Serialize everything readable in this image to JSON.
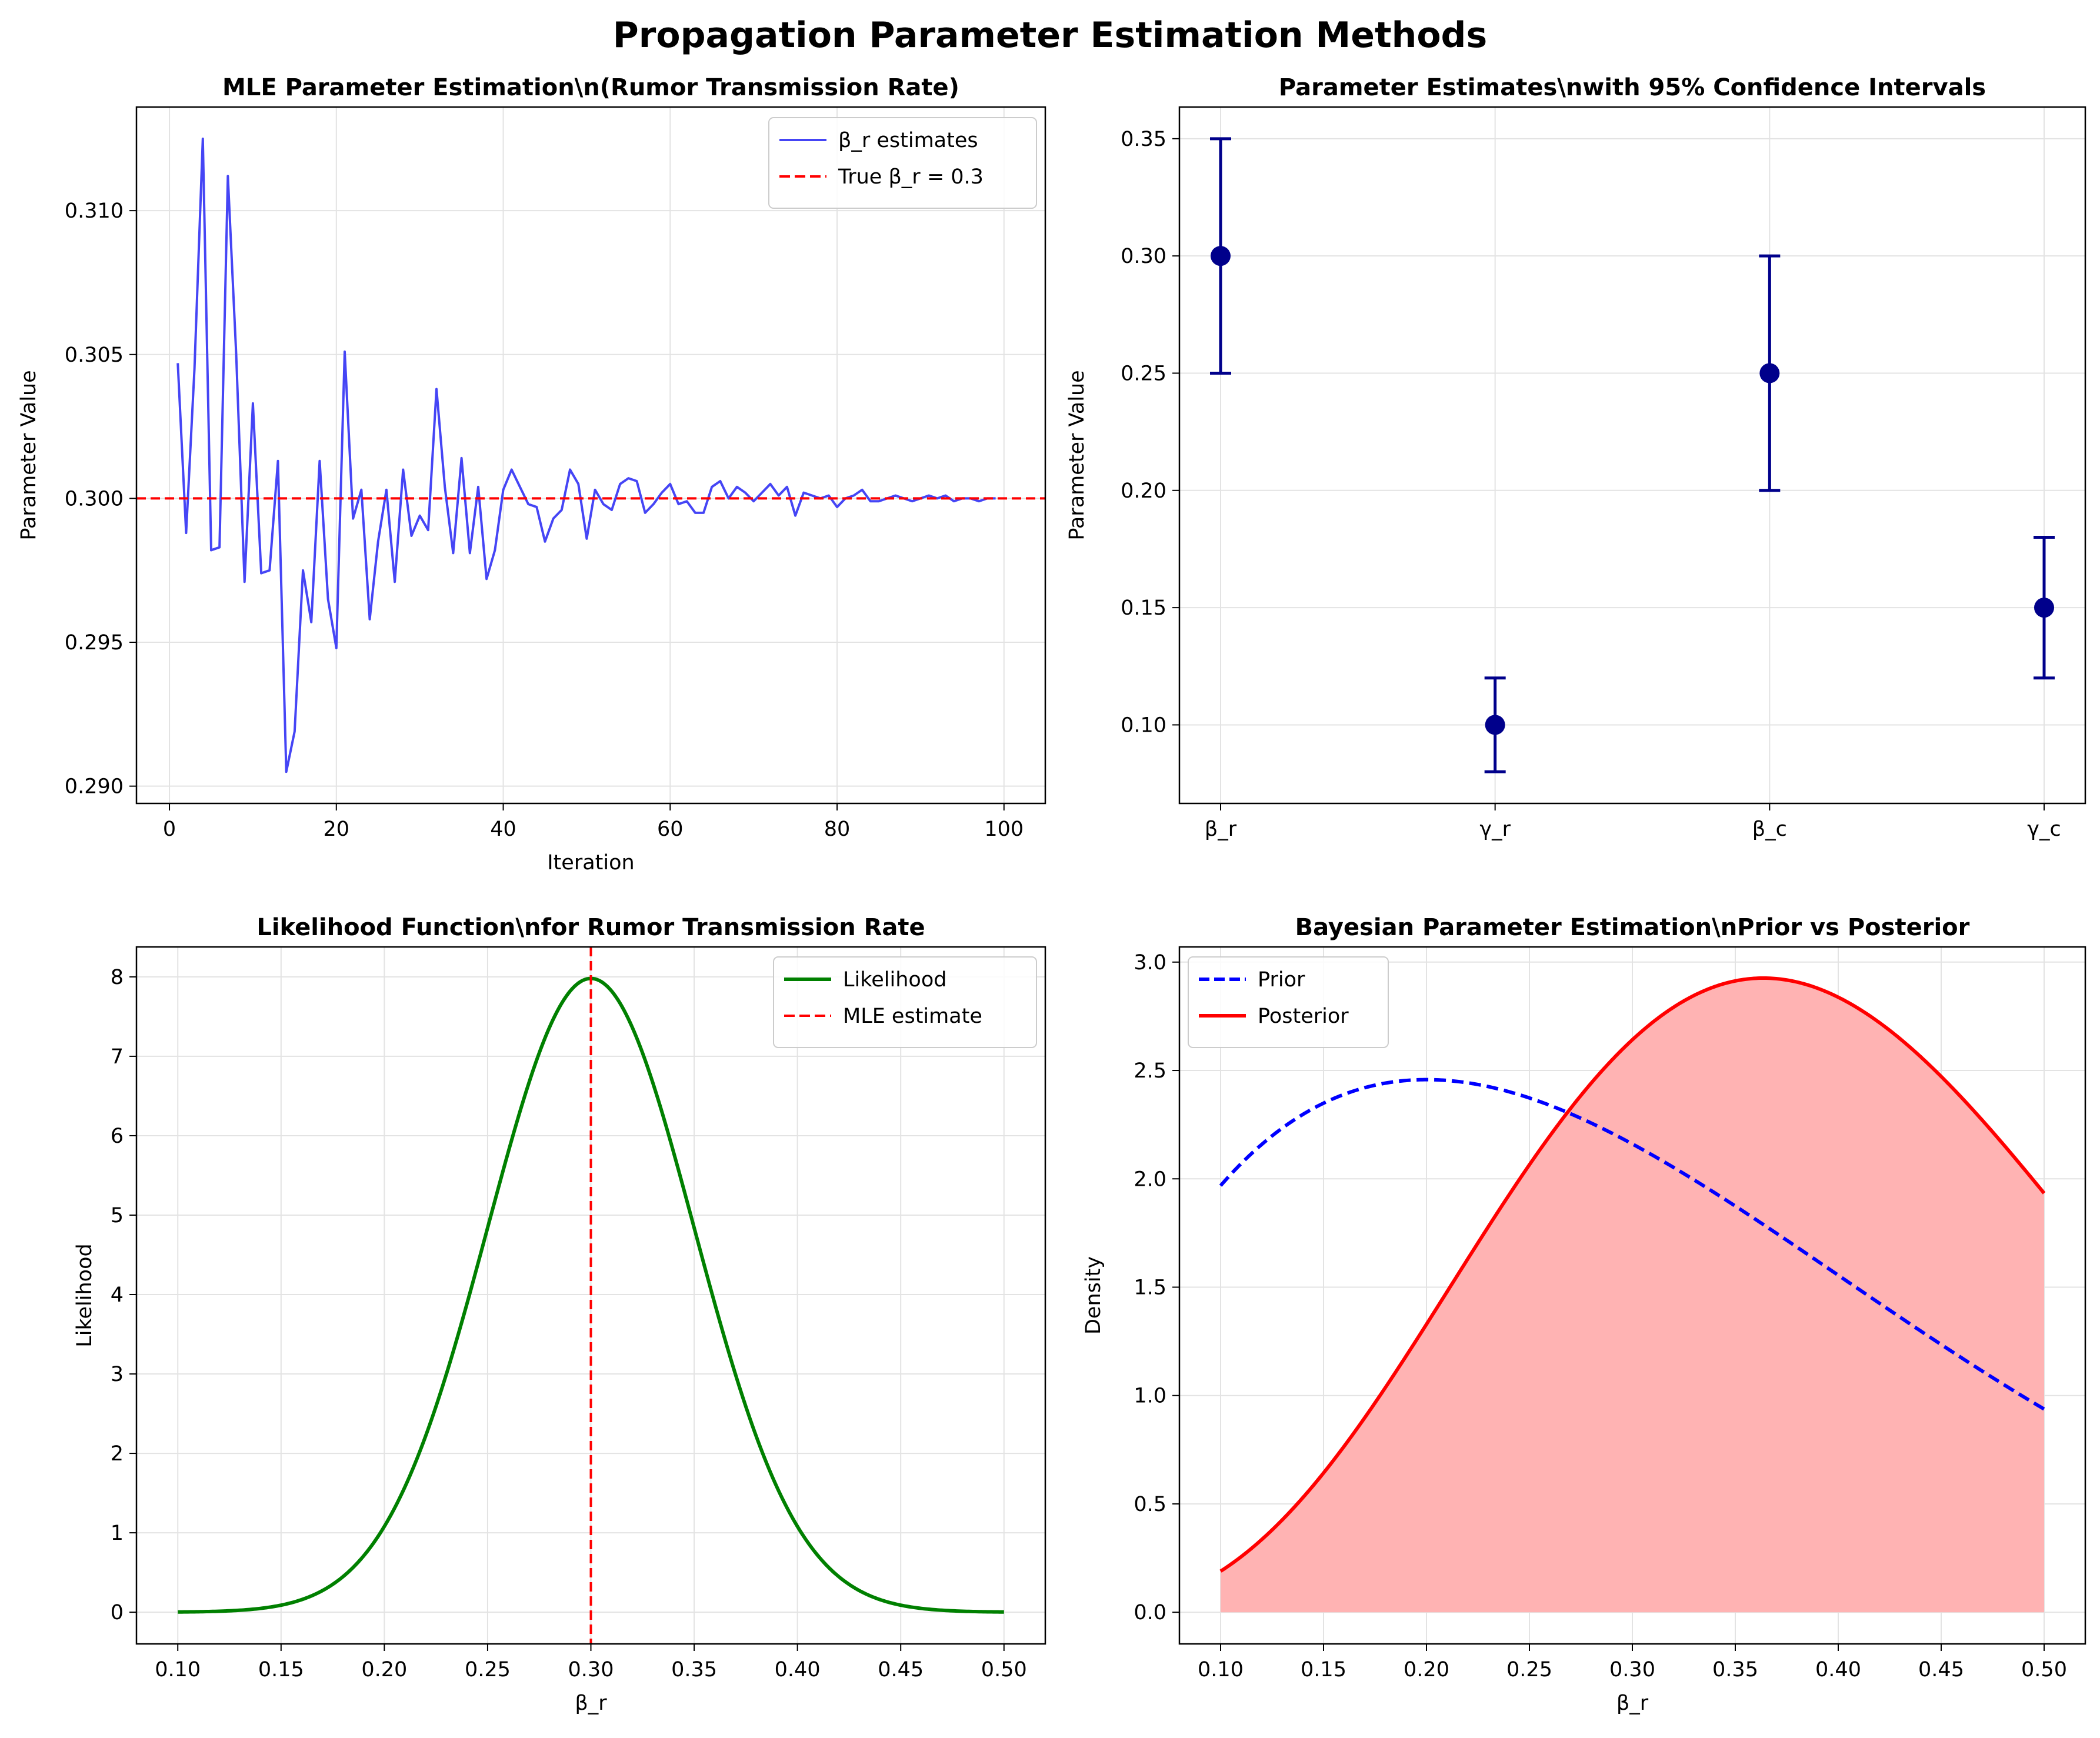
{
  "figure": {
    "suptitle": "Propagation Parameter Estimation Methods"
  },
  "chart_data": [
    {
      "id": "mle",
      "type": "line",
      "title": "MLE Parameter Estimation\\n(Rumor Transmission Rate)",
      "xlabel": "Iteration",
      "ylabel": "Parameter Value",
      "xlim": [
        -3.95,
        104.95
      ],
      "ylim": [
        0.2894,
        0.3136
      ],
      "xticks": [
        0,
        20,
        40,
        60,
        80,
        100
      ],
      "xtick_labels": [
        "0",
        "20",
        "40",
        "60",
        "80",
        "100"
      ],
      "yticks": [
        0.29,
        0.295,
        0.3,
        0.305,
        0.31
      ],
      "ytick_labels": [
        "0.290",
        "0.295",
        "0.300",
        "0.305",
        "0.310"
      ],
      "grid": true,
      "legend_position": "top-right",
      "series": [
        {
          "name": "β_r estimates",
          "color": "#4545f5",
          "style": "solid",
          "x": [
            1,
            2,
            3,
            4,
            5,
            6,
            7,
            8,
            9,
            10,
            11,
            12,
            13,
            14,
            15,
            16,
            17,
            18,
            19,
            20,
            21,
            22,
            23,
            24,
            25,
            26,
            27,
            28,
            29,
            30,
            31,
            32,
            33,
            34,
            35,
            36,
            37,
            38,
            39,
            40,
            41,
            42,
            43,
            44,
            45,
            46,
            47,
            48,
            49,
            50,
            51,
            52,
            53,
            54,
            55,
            56,
            57,
            58,
            59,
            60,
            61,
            62,
            63,
            64,
            65,
            66,
            67,
            68,
            69,
            70,
            71,
            72,
            73,
            74,
            75,
            76,
            77,
            78,
            79,
            80,
            81,
            82,
            83,
            84,
            85,
            86,
            87,
            88,
            89,
            90,
            91,
            92,
            93,
            94,
            95,
            96,
            97,
            98,
            99
          ],
          "y": [
            0.3047,
            0.2988,
            0.3045,
            0.3125,
            0.2982,
            0.2983,
            0.3112,
            0.305,
            0.2971,
            0.3033,
            0.2974,
            0.2975,
            0.3013,
            0.2905,
            0.2919,
            0.2975,
            0.2957,
            0.3013,
            0.2965,
            0.2948,
            0.3051,
            0.2993,
            0.3003,
            0.2958,
            0.2985,
            0.3003,
            0.2971,
            0.301,
            0.2987,
            0.2994,
            0.2989,
            0.3038,
            0.3004,
            0.2981,
            0.3014,
            0.2981,
            0.3004,
            0.2972,
            0.2982,
            0.3003,
            0.301,
            0.3004,
            0.2998,
            0.2997,
            0.2985,
            0.2993,
            0.2996,
            0.301,
            0.3005,
            0.2986,
            0.3003,
            0.2998,
            0.2996,
            0.3005,
            0.3007,
            0.3006,
            0.2995,
            0.2998,
            0.3002,
            0.3005,
            0.2998,
            0.2999,
            0.2995,
            0.2995,
            0.3004,
            0.3006,
            0.3,
            0.3004,
            0.3002,
            0.2999,
            0.3002,
            0.3005,
            0.3001,
            0.3004,
            0.2994,
            0.3002,
            0.3001,
            0.3,
            0.3001,
            0.2997,
            0.3,
            0.3001,
            0.3003,
            0.2999,
            0.2999,
            0.3,
            0.3001,
            0.3,
            0.2999,
            0.3,
            0.3001,
            0.3,
            0.3001,
            0.2999,
            0.3,
            0.3,
            0.2999,
            0.3,
            0.3
          ]
        },
        {
          "name": "True β_r = 0.3",
          "color": "#ff0000",
          "style": "dashed",
          "type": "hline",
          "value": 0.3
        }
      ]
    },
    {
      "id": "ci",
      "type": "scatter",
      "title": "Parameter Estimates\\nwith 95% Confidence Intervals",
      "xlabel": "",
      "ylabel": "Parameter Value",
      "categories": [
        "β_r",
        "γ_r",
        "β_c",
        "γ_c"
      ],
      "estimates": [
        0.3,
        0.1,
        0.25,
        0.15
      ],
      "lower": [
        0.25,
        0.08,
        0.2,
        0.12
      ],
      "upper": [
        0.35,
        0.12,
        0.3,
        0.18
      ],
      "color": "#00008b",
      "xlim": [
        -0.15,
        3.15
      ],
      "ylim": [
        0.0665,
        0.3635
      ],
      "yticks": [
        0.1,
        0.15,
        0.2,
        0.25,
        0.3,
        0.35
      ],
      "ytick_labels": [
        "0.10",
        "0.15",
        "0.20",
        "0.25",
        "0.30",
        "0.35"
      ],
      "grid": true
    },
    {
      "id": "likelihood",
      "type": "line",
      "title": "Likelihood Function\\nfor Rumor Transmission Rate",
      "xlabel": "β_r",
      "ylabel": "Likelihood",
      "mle_estimate": 0.3,
      "peak_likelihood": 7.98,
      "distribution": "normal",
      "std": 0.05,
      "x_range": [
        0.1,
        0.5
      ],
      "xlim": [
        0.08,
        0.52
      ],
      "ylim": [
        -0.399,
        8.377
      ],
      "xticks": [
        0.1,
        0.15,
        0.2,
        0.25,
        0.3,
        0.35,
        0.4,
        0.45,
        0.5
      ],
      "xtick_labels": [
        "0.10",
        "0.15",
        "0.20",
        "0.25",
        "0.30",
        "0.35",
        "0.40",
        "0.45",
        "0.50"
      ],
      "yticks": [
        0,
        1,
        2,
        3,
        4,
        5,
        6,
        7,
        8
      ],
      "ytick_labels": [
        "0",
        "1",
        "2",
        "3",
        "4",
        "5",
        "6",
        "7",
        "8"
      ],
      "grid": true,
      "legend_position": "top-right",
      "series": [
        {
          "name": "Likelihood",
          "color": "#008000",
          "style": "solid"
        },
        {
          "name": "MLE estimate",
          "color": "#ff0000",
          "style": "dashed",
          "type": "vline",
          "value": 0.3
        }
      ]
    },
    {
      "id": "bayes",
      "type": "area",
      "title": "Bayesian Parameter Estimation\\nPrior vs Posterior",
      "xlabel": "β_r",
      "ylabel": "Density",
      "xlim": [
        0.08,
        0.52
      ],
      "ylim": [
        -0.146,
        3.07
      ],
      "xticks": [
        0.1,
        0.15,
        0.2,
        0.25,
        0.3,
        0.35,
        0.4,
        0.45,
        0.5
      ],
      "xtick_labels": [
        "0.10",
        "0.15",
        "0.20",
        "0.25",
        "0.30",
        "0.35",
        "0.40",
        "0.45",
        "0.50"
      ],
      "yticks": [
        0.0,
        0.5,
        1.0,
        1.5,
        2.0,
        2.5,
        3.0
      ],
      "ytick_labels": [
        "0.0",
        "0.5",
        "1.0",
        "1.5",
        "2.0",
        "2.5",
        "3.0"
      ],
      "grid": true,
      "legend_position": "top-left",
      "series": [
        {
          "name": "Prior",
          "color": "#0000ff",
          "style": "dashed",
          "distribution": "beta",
          "alpha": 2,
          "beta": 5
        },
        {
          "name": "Posterior",
          "color": "#ff0000",
          "style": "solid",
          "fill": "#ffb3b3",
          "distribution": "beta",
          "alpha": 5,
          "beta": 8
        }
      ]
    }
  ]
}
